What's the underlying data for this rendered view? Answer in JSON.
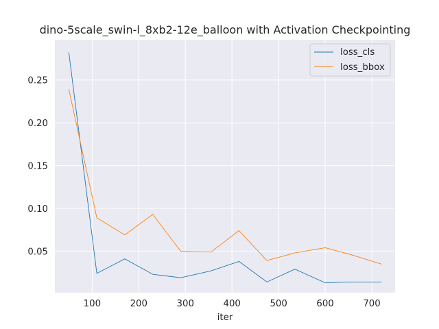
{
  "chart_data": {
    "type": "line",
    "title": "dino-5scale_swin-l_8xb2-12e_balloon with Activation Checkpointing",
    "xlabel": "iter",
    "ylabel": "",
    "x": [
      50,
      110,
      170,
      230,
      290,
      355,
      415,
      475,
      535,
      600,
      655,
      720
    ],
    "xlim": [
      20,
      750
    ],
    "ylim": [
      0.0015,
      0.297
    ],
    "xticks": [
      100,
      200,
      300,
      400,
      500,
      600,
      700
    ],
    "yticks": [
      0.05,
      0.1,
      0.15,
      0.2,
      0.25
    ],
    "ytick_labels": [
      "0.05",
      "0.10",
      "0.15",
      "0.20",
      "0.25"
    ],
    "grid": true,
    "legend_position": "top-right",
    "series": [
      {
        "name": "loss_cls",
        "color": "#1f77b4",
        "values": [
          0.282,
          0.024,
          0.041,
          0.023,
          0.019,
          0.027,
          0.038,
          0.014,
          0.029,
          0.013,
          0.014,
          0.014
        ]
      },
      {
        "name": "loss_bbox",
        "color": "#ff7f0e",
        "values": [
          0.239,
          0.089,
          0.069,
          0.093,
          0.05,
          0.049,
          0.074,
          0.039,
          0.048,
          0.054,
          0.046,
          0.035
        ]
      }
    ]
  }
}
